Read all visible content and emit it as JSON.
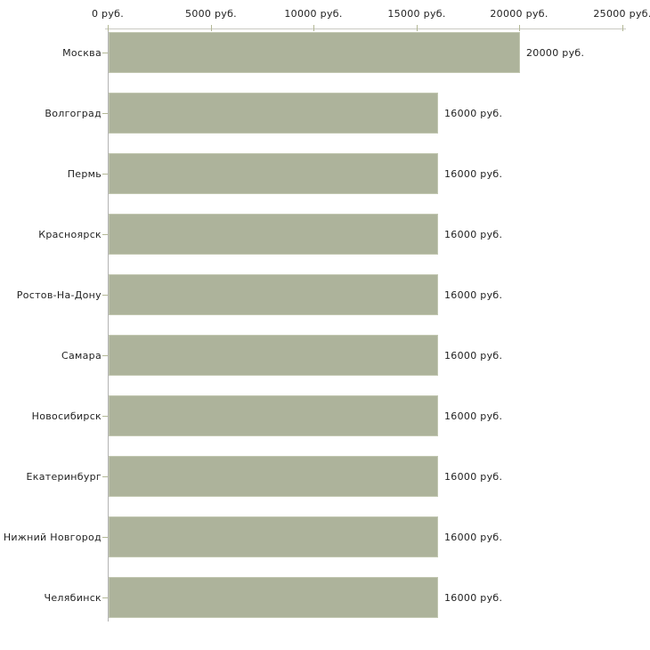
{
  "page": {
    "background": "#ffffff"
  },
  "chart_data": {
    "type": "bar",
    "orientation": "horizontal",
    "title": "",
    "categories": [
      "Москва",
      "Волгоград",
      "Пермь",
      "Красноярск",
      "Ростов-На-Дону",
      "Самара",
      "Новосибирск",
      "Екатеринбург",
      "Нижний Новгород",
      "Челябинск"
    ],
    "values": [
      20000,
      16000,
      16000,
      16000,
      16000,
      16000,
      16000,
      16000,
      16000,
      16000
    ],
    "value_labels": [
      "20000 руб.",
      "16000 руб.",
      "16000 руб.",
      "16000 руб.",
      "16000 руб.",
      "16000 руб.",
      "16000 руб.",
      "16000 руб.",
      "16000 руб.",
      "16000 руб."
    ],
    "x_axis": {
      "position": "top",
      "unit": "руб.",
      "range": [
        0,
        25000
      ],
      "ticks": [
        0,
        5000,
        10000,
        15000,
        20000,
        25000
      ],
      "tick_labels": [
        "0 руб.",
        "5000 руб.",
        "10000 руб.",
        "15000 руб.",
        "20000 руб.",
        "25000 руб."
      ]
    },
    "grid": false,
    "legend": false,
    "colors": {
      "bar_fill": "#adb39b",
      "bar_border": "#c2c7b1",
      "axis_line": "#c9c9c2",
      "category_axis_line": "#b3b3b3",
      "tick_mark": "#b3b896",
      "text": "#222222",
      "background": "#ffffff"
    }
  }
}
